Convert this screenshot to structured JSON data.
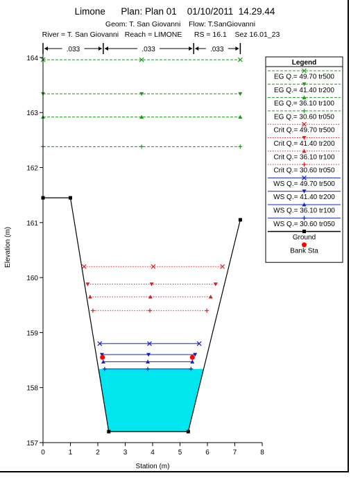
{
  "header": {
    "title_line": "Limone      Plan: Plan 01    01/10/2011  14.29.44",
    "geom_line": "Geom: T. San Giovanni    Flow: T.SanGiovanni",
    "river_line": "River = T. San Giovanni   Reach = LIMONE      RS = 16.1    Sez 16.01_23"
  },
  "manning": [
    ".033",
    ".033",
    ".033"
  ],
  "chart_data": {
    "type": "line",
    "xlabel": "Station (m)",
    "ylabel": "Elevation (m)",
    "xlim": [
      0,
      8
    ],
    "ylim": [
      157,
      164.1
    ],
    "xticks": [
      0,
      1,
      2,
      3,
      4,
      5,
      6,
      7,
      8
    ],
    "yticks": [
      157,
      158,
      159,
      160,
      161,
      162,
      163,
      164
    ],
    "grid": false,
    "legend_position": "top-right",
    "legend_title": "Legend",
    "ground": {
      "name": "Ground",
      "x": [
        0,
        1.0,
        2.4,
        5.3,
        7.2
      ],
      "y": [
        161.45,
        161.45,
        157.2,
        157.2,
        161.05
      ]
    },
    "bank_stations": {
      "name": "Bank Sta",
      "x": [
        2.17,
        5.45
      ],
      "y": [
        158.55,
        158.55
      ]
    },
    "manning_break_stations": [
      2.2,
      5.5
    ],
    "series": [
      {
        "name": "EG Q.= 49.70  tr500",
        "kind": "EG",
        "y": 163.96,
        "x_range": [
          0,
          7.2
        ],
        "color": "#1f9a1f",
        "marker": "x"
      },
      {
        "name": "EG Q.= 41.40  tr200",
        "kind": "EG",
        "y": 163.34,
        "x_range": [
          0,
          7.2
        ],
        "color": "#1f9a1f",
        "marker": "tri-down"
      },
      {
        "name": "EG Q.= 36.10  tr100",
        "kind": "EG",
        "y": 162.92,
        "x_range": [
          0,
          7.2
        ],
        "color": "#1f9a1f",
        "marker": "tri-up"
      },
      {
        "name": "EG Q.= 30.60  tr050",
        "kind": "EG",
        "y": 162.38,
        "x_range": [
          0,
          7.2
        ],
        "color": "#1f9a1f",
        "marker": "plus"
      },
      {
        "name": "Crit Q.= 49.70  tr500",
        "kind": "Crit",
        "y": 160.2,
        "x_range": [
          1.5,
          6.55
        ],
        "color": "#e31a1c",
        "marker": "x"
      },
      {
        "name": "Crit Q.= 41.40  tr200",
        "kind": "Crit",
        "y": 159.88,
        "x_range": [
          1.63,
          6.3
        ],
        "color": "#e31a1c",
        "marker": "tri-down"
      },
      {
        "name": "Crit Q.= 36.10  tr100",
        "kind": "Crit",
        "y": 159.65,
        "x_range": [
          1.72,
          6.12
        ],
        "color": "#e31a1c",
        "marker": "tri-up"
      },
      {
        "name": "Crit Q.= 30.60  tr050",
        "kind": "Crit",
        "y": 159.4,
        "x_range": [
          1.82,
          5.98
        ],
        "color": "#e31a1c",
        "marker": "plus"
      },
      {
        "name": "WS Q.= 49.70  tr500",
        "kind": "WS",
        "y": 158.8,
        "x_range": [
          2.07,
          5.7
        ],
        "color": "#1020d0",
        "marker": "x"
      },
      {
        "name": "WS Q.= 41.40  tr200",
        "kind": "WS",
        "y": 158.6,
        "x_range": [
          2.15,
          5.55
        ],
        "color": "#1020d0",
        "marker": "tri-down"
      },
      {
        "name": "WS Q.= 36.10  tr100",
        "kind": "WS",
        "y": 158.47,
        "x_range": [
          2.2,
          5.45
        ],
        "color": "#1020d0",
        "marker": "tri-up"
      },
      {
        "name": "WS Q.= 30.60  tr050",
        "kind": "WS",
        "y": 158.34,
        "x_range": [
          2.25,
          5.4
        ],
        "color": "#1020d0",
        "marker": "plus"
      }
    ],
    "water_fill_color": "#00e5ee"
  }
}
